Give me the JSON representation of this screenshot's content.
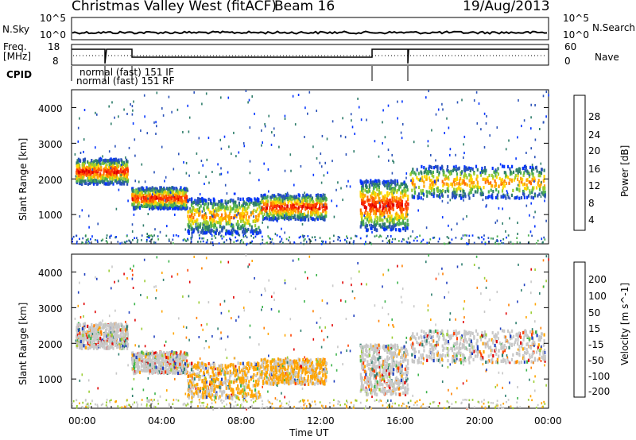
{
  "header": {
    "station": "Christmas Valley West (fitACF)",
    "beam": "Beam 16",
    "date": "19/Aug/2013"
  },
  "top_panels": {
    "nsky_label": "N.Sky",
    "nsky_left_ticks": [
      "10^5",
      "10^0"
    ],
    "nsky_right_ticks": [
      "10^5",
      "10^0"
    ],
    "nsearch_label": "N.Search",
    "freq_label": "Freq.",
    "freq_unit": "[MHz]",
    "freq_ticks": [
      "18",
      "8"
    ],
    "nave_ticks": [
      "60",
      "0"
    ],
    "nave_label": "Nave",
    "cpid_label": "CPID",
    "cpid_lines": [
      "normal (fast) 151 IF",
      "normal (fast) 151 RF"
    ]
  },
  "chart_data": [
    {
      "type": "heatmap",
      "name": "power",
      "ylabel": "Slant Range [km]",
      "y_ticks": [
        "1000",
        "2000",
        "3000",
        "4000"
      ],
      "ylim": [
        180,
        4500
      ],
      "colorbar": {
        "label": "Power [dB]",
        "ticks": [
          "4",
          "8",
          "12",
          "16",
          "20",
          "24",
          "28"
        ],
        "colors": [
          "#0033ff",
          "#2a52b8",
          "#2e7d6a",
          "#4caf50",
          "#9acd32",
          "#ffd700",
          "#ffa500",
          "#ff6a00",
          "#ff3300",
          "#e00000"
        ]
      },
      "echo_bands": [
        {
          "t": [
            0.2,
            2.8
          ],
          "r": [
            1900,
            2600
          ],
          "level": "high"
        },
        {
          "t": [
            3.0,
            5.8
          ],
          "r": [
            1200,
            1800
          ],
          "level": "high"
        },
        {
          "t": [
            5.8,
            9.5
          ],
          "r": [
            500,
            1500
          ],
          "level": "medium"
        },
        {
          "t": [
            9.5,
            12.8
          ],
          "r": [
            900,
            1600
          ],
          "level": "high"
        },
        {
          "t": [
            14.5,
            16.9
          ],
          "r": [
            600,
            2000
          ],
          "level": "high"
        },
        {
          "t": [
            17.0,
            23.8
          ],
          "r": [
            1500,
            2400
          ],
          "level": "medium"
        }
      ]
    },
    {
      "type": "heatmap",
      "name": "velocity",
      "xlabel": "Time UT",
      "ylabel": "Slant Range [km]",
      "y_ticks": [
        "1000",
        "2000",
        "3000",
        "4000"
      ],
      "ylim": [
        180,
        4500
      ],
      "x_ticks": [
        "00:00",
        "04:00",
        "08:00",
        "12:00",
        "16:00",
        "20:00",
        "00:00"
      ],
      "colorbar": {
        "label": "Velocity [m s^-1]",
        "ticks": [
          "200",
          "100",
          "50",
          "15",
          "-15",
          "-50",
          "-100",
          "-200"
        ],
        "colors": [
          "#1f3fbf",
          "#2f7f6f",
          "#3cb44b",
          "#9acd32",
          "#c8c8c8",
          "#c8c8c8",
          "#ffa500",
          "#ff7f00",
          "#ff4000",
          "#e00000"
        ]
      }
    }
  ]
}
